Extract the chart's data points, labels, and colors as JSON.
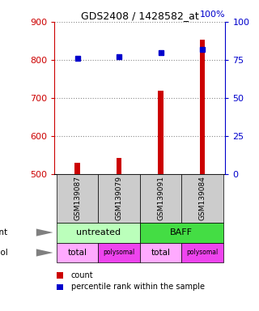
{
  "title": "GDS2408 / 1428582_at",
  "samples": [
    "GSM139087",
    "GSM139079",
    "GSM139091",
    "GSM139084"
  ],
  "counts": [
    530,
    543,
    718,
    852
  ],
  "percentile_ranks": [
    76,
    77,
    80,
    82
  ],
  "ylim_left": [
    500,
    900
  ],
  "ylim_right": [
    0,
    100
  ],
  "yticks_left": [
    500,
    600,
    700,
    800,
    900
  ],
  "yticks_right": [
    0,
    25,
    50,
    75,
    100
  ],
  "bar_color": "#cc0000",
  "dot_color": "#0000cc",
  "agent_configs": [
    {
      "label": "untreated",
      "start": 0,
      "end": 2,
      "color": "#bbffbb"
    },
    {
      "label": "BAFF",
      "start": 2,
      "end": 4,
      "color": "#44dd44"
    }
  ],
  "protocol_labels": [
    "total",
    "polysomal",
    "total",
    "polysomal"
  ],
  "protocol_colors_map": {
    "total": "#ffaaff",
    "polysomal": "#ee44ee"
  },
  "label_agent": "agent",
  "label_protocol": "protocol",
  "legend_count": "count",
  "legend_pct": "percentile rank within the sample",
  "grid_color": "#888888",
  "sample_box_color": "#cccccc",
  "left_tick_color": "#cc0000",
  "right_tick_color": "#0000cc",
  "right_label_pct": "100%",
  "bar_width": 0.12
}
